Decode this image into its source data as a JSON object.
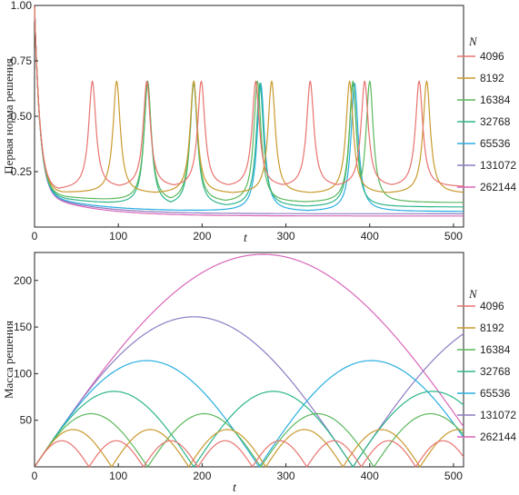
{
  "chart_data": [
    {
      "type": "line",
      "ylabel": "Первая норма решения",
      "xlabel": "t",
      "xlim": [
        0,
        512
      ],
      "ylim": [
        0,
        1.0
      ],
      "xticks": [
        "0",
        "100",
        "200",
        "300",
        "400",
        "500"
      ],
      "yticks": [
        "0.25",
        "0.50",
        "0.75",
        "1.00"
      ],
      "grid": false,
      "legend_title": "N",
      "legend_position": "right",
      "series": [
        {
          "name": "4096",
          "color": "#e8736f",
          "period": 65,
          "peaks": [
            69,
            134,
            199,
            264,
            329,
            394,
            459
          ],
          "peak_value": 0.66,
          "floor": 0.18
        },
        {
          "name": "8192",
          "color": "#c99a2e",
          "period": 93,
          "peaks": [
            98,
            190,
            283,
            376,
            468
          ],
          "peak_value": 0.66,
          "floor": 0.15
        },
        {
          "name": "16384",
          "color": "#5bb85c",
          "period": 123,
          "peaks": [
            135,
            190,
            266,
            380,
            400
          ],
          "peak_value": 0.66,
          "floor": 0.11
        },
        {
          "name": "32768",
          "color": "#2db58a",
          "period": 180,
          "peaks": [
            135,
            190,
            269,
            380
          ],
          "peak_value": 0.65,
          "floor": 0.09
        },
        {
          "name": "65536",
          "color": "#29aee0",
          "period": 380,
          "peaks": [
            270,
            382
          ],
          "peak_value": 0.65,
          "floor": 0.07
        },
        {
          "name": "131072",
          "color": "#8e7cc3",
          "period": 0,
          "peaks": [],
          "peak_value": 0.0,
          "floor": 0.06
        },
        {
          "name": "262144",
          "color": "#d966b8",
          "period": 0,
          "peaks": [],
          "peak_value": 0.0,
          "floor": 0.05
        }
      ]
    },
    {
      "type": "line",
      "ylabel": "Масса решения",
      "xlabel": "t",
      "xlim": [
        0,
        512
      ],
      "ylim": [
        0,
        230
      ],
      "xticks": [
        "0",
        "100",
        "200",
        "300",
        "400",
        "500"
      ],
      "yticks": [
        "50",
        "100",
        "150",
        "200"
      ],
      "grid": false,
      "legend_title": "N",
      "legend_position": "right",
      "series": [
        {
          "name": "4096",
          "color": "#e8736f",
          "period": 65,
          "amplitude": 28
        },
        {
          "name": "8192",
          "color": "#c99a2e",
          "period": 92,
          "amplitude": 40
        },
        {
          "name": "16384",
          "color": "#5bb85c",
          "period": 135,
          "amplitude": 57
        },
        {
          "name": "32768",
          "color": "#2db58a",
          "period": 190,
          "amplitude": 81
        },
        {
          "name": "65536",
          "color": "#29aee0",
          "period": 268,
          "amplitude": 114
        },
        {
          "name": "131072",
          "color": "#8e7cc3",
          "period": 380,
          "amplitude": 161
        },
        {
          "name": "262144",
          "color": "#d966b8",
          "period": 545,
          "amplitude": 228
        }
      ]
    }
  ]
}
